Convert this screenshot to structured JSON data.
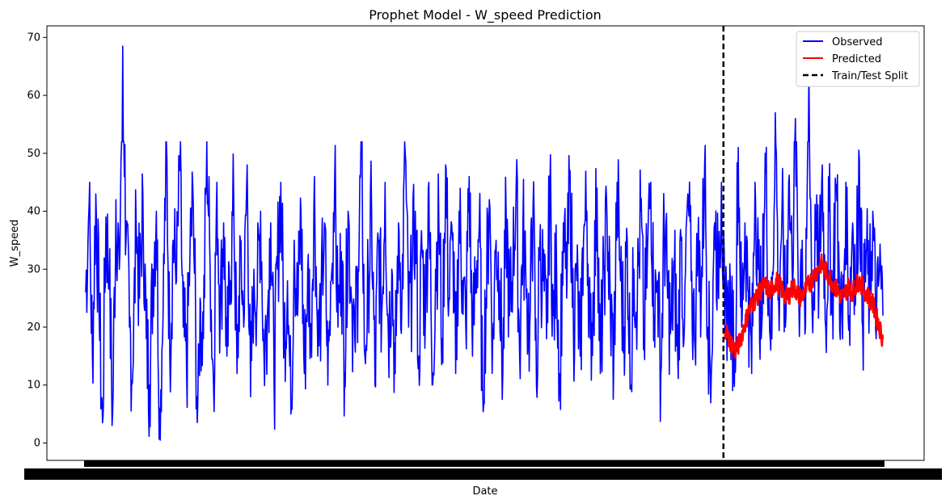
{
  "chart_data": {
    "type": "line",
    "title": "Prophet Model - W_speed Prediction",
    "xlabel": "Date",
    "ylabel": "W_speed",
    "ylim": [
      -3,
      72
    ],
    "yticks": [
      0,
      10,
      20,
      30,
      40,
      50,
      60,
      70
    ],
    "x_tick_labels_note": "dense overlapping date ticks rendered as a solid black band",
    "grid": false,
    "legend_position": "top-right",
    "train_test_split_index": 0.8,
    "series": [
      {
        "name": "Observed",
        "color": "#0000ff",
        "description": "noisy wind speed series, mostly between 1 and 52, peaks at 68.5 near start and 65.7 in test period",
        "values": [
          26,
          41,
          15,
          43,
          22,
          3.5,
          39,
          28,
          5,
          42,
          30,
          68.5,
          35,
          20,
          12,
          38,
          25,
          43,
          18,
          10,
          30,
          40,
          6,
          22,
          52,
          15,
          35,
          28,
          47,
          20,
          12,
          33,
          41,
          8,
          25,
          18,
          52,
          30,
          10,
          45,
          22,
          38,
          15,
          28,
          42,
          12,
          35,
          20,
          48,
          8,
          30,
          25,
          40,
          15,
          22,
          38,
          10,
          30,
          45,
          18,
          28,
          5,
          35,
          22,
          40,
          12,
          30,
          20,
          46,
          15,
          25,
          38,
          10,
          28,
          45,
          20,
          33,
          12,
          40,
          25,
          18,
          30,
          51,
          15,
          28,
          40,
          10,
          35,
          22,
          45,
          18,
          30,
          12,
          38,
          25,
          50,
          20,
          28,
          40,
          15,
          33,
          22,
          45,
          10,
          30,
          38,
          18,
          48,
          25,
          35,
          12,
          40,
          28,
          20,
          46,
          15,
          30,
          38,
          10,
          25,
          42,
          18,
          35,
          28,
          12,
          40,
          22,
          30,
          45,
          15,
          38,
          25,
          20,
          41,
          10,
          33,
          28,
          18,
          44,
          22,
          30,
          12,
          38,
          25,
          47,
          20,
          28,
          15,
          35,
          40,
          18,
          25,
          44,
          12,
          30,
          38,
          22,
          15,
          45,
          28,
          20,
          35,
          10,
          30,
          25,
          40,
          18,
          33,
          45,
          22,
          28,
          12,
          38,
          25,
          20,
          30,
          15,
          35,
          20,
          43,
          28,
          18,
          33,
          25,
          48,
          20,
          12,
          38,
          30,
          45,
          18,
          28,
          22,
          16,
          51,
          20,
          38,
          26,
          12,
          45,
          30,
          20,
          50,
          28,
          18,
          57,
          25,
          40,
          20,
          45,
          30,
          56,
          25,
          35,
          20,
          65,
          22,
          35,
          28,
          48,
          20,
          40,
          25,
          44,
          30,
          18,
          45,
          22,
          38,
          28,
          49,
          20,
          33,
          25,
          40,
          18,
          30,
          22
        ]
      },
      {
        "name": "Predicted",
        "color": "#ff0000",
        "values": [
          20,
          18,
          17,
          16,
          17,
          19,
          21,
          23,
          24,
          25,
          26,
          27,
          27,
          26,
          27,
          28,
          27,
          26,
          25,
          26,
          27,
          26,
          25,
          26,
          27,
          28,
          29,
          30,
          31,
          30,
          29,
          28,
          27,
          26,
          25,
          26,
          27,
          26,
          27,
          28,
          27,
          26,
          25,
          24,
          22,
          20,
          18
        ]
      }
    ],
    "legend": [
      {
        "label": "Observed",
        "color": "#0000ff",
        "style": "solid"
      },
      {
        "label": "Predicted",
        "color": "#ff0000",
        "style": "solid"
      },
      {
        "label": "Train/Test Split",
        "color": "#000000",
        "style": "dashed"
      }
    ]
  }
}
